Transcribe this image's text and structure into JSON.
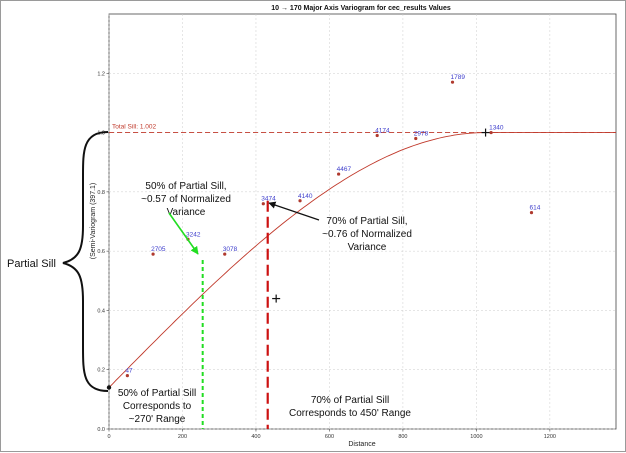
{
  "chart_data": {
    "type": "scatter",
    "title": "10 → 170 Major Axis Variogram for cec_results Values",
    "xlabel": "Distance",
    "ylabel": "(Semi-Variogram (397.1)",
    "xlim": [
      0,
      1380
    ],
    "ylim": [
      0,
      1.4
    ],
    "x_ticks": [
      "0",
      "200",
      "400",
      "600",
      "800",
      "1000",
      "1200"
    ],
    "y_ticks": [
      "0.0",
      "0.2",
      "0.4",
      "0.6",
      "0.8",
      "1.0",
      "1.2"
    ],
    "grid": true,
    "points": [
      {
        "x": 50,
        "y": 0.18,
        "label": "47"
      },
      {
        "x": 120,
        "y": 0.59,
        "label": "2705"
      },
      {
        "x": 215,
        "y": 0.64,
        "label": "3242"
      },
      {
        "x": 315,
        "y": 0.59,
        "label": "3078"
      },
      {
        "x": 420,
        "y": 0.76,
        "label": "3474"
      },
      {
        "x": 520,
        "y": 0.77,
        "label": "4140"
      },
      {
        "x": 625,
        "y": 0.86,
        "label": "4467"
      },
      {
        "x": 730,
        "y": 0.99,
        "label": "4174"
      },
      {
        "x": 835,
        "y": 0.98,
        "label": "2978"
      },
      {
        "x": 935,
        "y": 1.17,
        "label": "1789"
      },
      {
        "x": 1040,
        "y": 1.0,
        "label": "1340"
      },
      {
        "x": 1150,
        "y": 0.73,
        "label": "614"
      }
    ],
    "sill": {
      "value": 1.0,
      "label": "Total Sill: 1.002"
    },
    "nugget": 0.14,
    "range": 1025,
    "model_color": "#c0392b",
    "point_color": "#b03a2e",
    "label_color": "#3d3dcc",
    "markers": [
      {
        "x": 1025,
        "y": 1.0
      },
      {
        "x": 455,
        "y": 0.44
      }
    ],
    "reference_lines": [
      {
        "x": 255,
        "y": 0.57,
        "color": "#22dd22",
        "style": "dashed"
      },
      {
        "x": 432,
        "y": 0.77,
        "color": "#cc1111",
        "style": "dashed"
      }
    ]
  },
  "annotations": {
    "partial_sill_label": "Partial Sill",
    "green_note": [
      "50% of Partial Sill,",
      "~0.57 of Normalized",
      "Variance"
    ],
    "red_note": [
      "70% of Partial Sill,",
      "~0.76 of Normalized",
      "Variance"
    ],
    "bottom_left_note": [
      "50% of Partial Sill",
      "Corresponds to",
      "~270' Range"
    ],
    "bottom_right_note": [
      "70% of Partial Sill",
      "Corresponds to 450' Range"
    ]
  },
  "colors": {
    "green": "#22dd22",
    "red": "#cc1111",
    "grid": "#cccccc"
  }
}
